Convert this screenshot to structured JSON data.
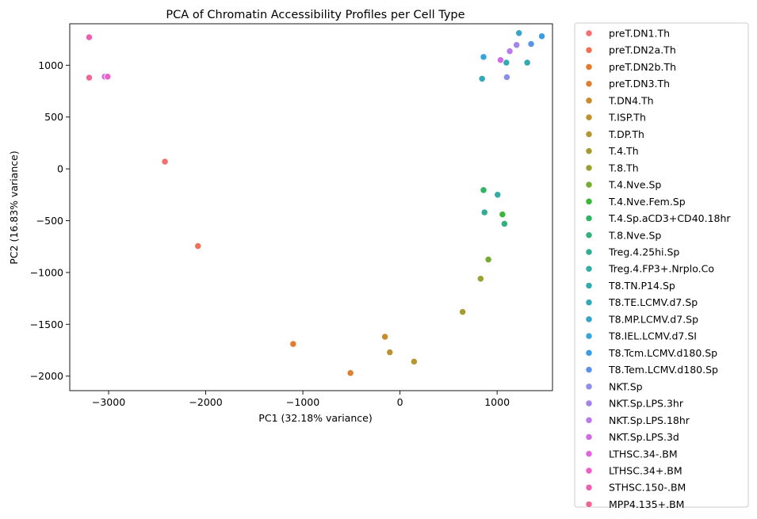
{
  "chart_data": {
    "type": "scatter",
    "title": "PCA of Chromatin Accessibility Profiles per Cell Type",
    "xlabel": "PC1 (32.18% variance)",
    "ylabel": "PC2 (16.83% variance)",
    "xlim": [
      -3400,
      1570
    ],
    "ylim": [
      -2140,
      1400
    ],
    "xticks": [
      -3000,
      -2000,
      -1000,
      0,
      1000
    ],
    "yticks": [
      -2000,
      -1500,
      -1000,
      -500,
      0,
      500,
      1000
    ],
    "grid": false,
    "legend_position": "outside-right",
    "series": [
      {
        "name": "preT.DN1.Th",
        "color": "#f0716f",
        "points": [
          [
            -2420,
            70
          ]
        ]
      },
      {
        "name": "preT.DN2a.Th",
        "color": "#ef7258",
        "points": [
          [
            -2080,
            -745
          ]
        ]
      },
      {
        "name": "preT.DN2b.Th",
        "color": "#e27b2f",
        "points": [
          [
            -1100,
            -1690
          ]
        ]
      },
      {
        "name": "preT.DN3.Th",
        "color": "#dc8034",
        "points": [
          [
            -510,
            -1970
          ]
        ]
      },
      {
        "name": "T.DN4.Th",
        "color": "#c78b2b",
        "points": [
          [
            -155,
            -1620
          ]
        ]
      },
      {
        "name": "T.ISP.Th",
        "color": "#be9132",
        "points": [
          [
            -105,
            -1770
          ]
        ]
      },
      {
        "name": "T.DP.Th",
        "color": "#b49632",
        "points": [
          [
            145,
            -1860
          ]
        ]
      },
      {
        "name": "T.4.Th",
        "color": "#a59c31",
        "points": [
          [
            645,
            -1380
          ]
        ]
      },
      {
        "name": "T.8.Th",
        "color": "#98a233",
        "points": [
          [
            830,
            -1060
          ]
        ]
      },
      {
        "name": "T.4.Nve.Sp",
        "color": "#77aa32",
        "points": [
          [
            910,
            -875
          ]
        ]
      },
      {
        "name": "T.4.Nve.Fem.Sp",
        "color": "#3cb63a",
        "points": [
          [
            1055,
            -440
          ]
        ]
      },
      {
        "name": "T.4.Sp.aCD3+CD40.18hr",
        "color": "#32b263",
        "points": [
          [
            860,
            -205
          ]
        ]
      },
      {
        "name": "T.8.Nve.Sp",
        "color": "#33b07e",
        "points": [
          [
            1075,
            -530
          ]
        ]
      },
      {
        "name": "Treg.4.25hi.Sp",
        "color": "#33ad92",
        "points": [
          [
            870,
            -420
          ]
        ]
      },
      {
        "name": "Treg.4.FP3+.Nrplo.Co",
        "color": "#34aea4",
        "points": [
          [
            1005,
            -250
          ]
        ]
      },
      {
        "name": "T8.TN.P14.Sp",
        "color": "#33aab0",
        "points": [
          [
            1095,
            1025
          ],
          [
            1310,
            1025
          ]
        ]
      },
      {
        "name": "T8.TE.LCMV.d7.Sp",
        "color": "#34a8bc",
        "points": [
          [
            845,
            870
          ]
        ]
      },
      {
        "name": "T8.MP.LCMV.d7.Sp",
        "color": "#36a3c9",
        "points": [
          [
            1225,
            1310
          ]
        ]
      },
      {
        "name": "T8.IEL.LCMV.d7.SI",
        "color": "#37a5d8",
        "points": [
          [
            860,
            1080
          ]
        ]
      },
      {
        "name": "T8.Tcm.LCMV.d180.Sp",
        "color": "#3c9ce2",
        "points": [
          [
            1460,
            1280
          ]
        ]
      },
      {
        "name": "T8.Tem.LCMV.d180.Sp",
        "color": "#5a93e6",
        "points": [
          [
            1350,
            1205
          ]
        ]
      },
      {
        "name": "NKT.Sp",
        "color": "#8c8fe8",
        "points": [
          [
            1100,
            885
          ]
        ]
      },
      {
        "name": "NKT.Sp.LPS.3hr",
        "color": "#a483ea",
        "points": [
          [
            1200,
            1195
          ]
        ]
      },
      {
        "name": "NKT.Sp.LPS.18hr",
        "color": "#bb79eb",
        "points": [
          [
            1130,
            1135
          ]
        ]
      },
      {
        "name": "NKT.Sp.LPS.3d",
        "color": "#d06be6",
        "points": [
          [
            1035,
            1050
          ]
        ]
      },
      {
        "name": "LTHSC.34-.BM",
        "color": "#e164df",
        "points": [
          [
            -3040,
            890
          ]
        ]
      },
      {
        "name": "LTHSC.34+.BM",
        "color": "#ea5fca",
        "points": [
          [
            -3010,
            890
          ]
        ]
      },
      {
        "name": "STHSC.150-.BM",
        "color": "#ee5fb2",
        "points": [
          [
            -3200,
            1270
          ]
        ]
      },
      {
        "name": "MPP4.135+.BM",
        "color": "#ef6697",
        "points": [
          [
            -3200,
            880
          ]
        ]
      }
    ]
  }
}
